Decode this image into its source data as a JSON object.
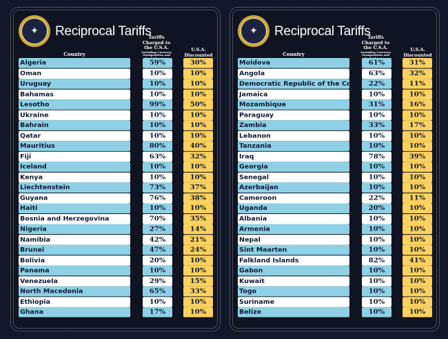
{
  "title": "Reciprocal Tariffs",
  "headers": {
    "country": "Country",
    "charged": "Tariffs Charged to the U.S.A.",
    "charged_sub": "Including Currency Manipulation and Trade Barriers",
    "discounted": "U.S.A. Discounted Reciprocal Tariffs"
  },
  "colors": {
    "background": "#12172a",
    "row_blue": "#8fd0e4",
    "row_white": "#ffffff",
    "discounted": "#fcd15f",
    "text": "#0c1a33"
  },
  "seal_icon": "presidential-seal",
  "tables": [
    {
      "rows": [
        {
          "country": "Algeria",
          "charged": "59%",
          "discounted": "30%"
        },
        {
          "country": "Oman",
          "charged": "10%",
          "discounted": "10%"
        },
        {
          "country": "Uruguay",
          "charged": "10%",
          "discounted": "10%"
        },
        {
          "country": "Bahamas",
          "charged": "10%",
          "discounted": "10%"
        },
        {
          "country": "Lesotho",
          "charged": "99%",
          "discounted": "50%"
        },
        {
          "country": "Ukraine",
          "charged": "10%",
          "discounted": "10%"
        },
        {
          "country": "Bahrain",
          "charged": "10%",
          "discounted": "10%"
        },
        {
          "country": "Qatar",
          "charged": "10%",
          "discounted": "10%"
        },
        {
          "country": "Mauritius",
          "charged": "80%",
          "discounted": "40%"
        },
        {
          "country": "Fiji",
          "charged": "63%",
          "discounted": "32%"
        },
        {
          "country": "Iceland",
          "charged": "10%",
          "discounted": "10%"
        },
        {
          "country": "Kenya",
          "charged": "10%",
          "discounted": "10%"
        },
        {
          "country": "Liechtenstein",
          "charged": "73%",
          "discounted": "37%"
        },
        {
          "country": "Guyana",
          "charged": "76%",
          "discounted": "38%"
        },
        {
          "country": "Haiti",
          "charged": "10%",
          "discounted": "10%"
        },
        {
          "country": "Bosnia and Herzegovina",
          "charged": "70%",
          "discounted": "35%"
        },
        {
          "country": "Nigeria",
          "charged": "27%",
          "discounted": "14%"
        },
        {
          "country": "Namibia",
          "charged": "42%",
          "discounted": "21%"
        },
        {
          "country": "Brunei",
          "charged": "47%",
          "discounted": "24%"
        },
        {
          "country": "Bolivia",
          "charged": "20%",
          "discounted": "10%"
        },
        {
          "country": "Panama",
          "charged": "10%",
          "discounted": "10%"
        },
        {
          "country": "Venezuela",
          "charged": "29%",
          "discounted": "15%"
        },
        {
          "country": "North Macedonia",
          "charged": "65%",
          "discounted": "33%"
        },
        {
          "country": "Ethiopia",
          "charged": "10%",
          "discounted": "10%"
        },
        {
          "country": "Ghana",
          "charged": "17%",
          "discounted": "10%"
        }
      ]
    },
    {
      "rows": [
        {
          "country": "Moldova",
          "charged": "61%",
          "discounted": "31%"
        },
        {
          "country": "Angola",
          "charged": "63%",
          "discounted": "32%"
        },
        {
          "country": "Democratic Republic of the Congo",
          "charged": "22%",
          "discounted": "11%"
        },
        {
          "country": "Jamaica",
          "charged": "10%",
          "discounted": "10%"
        },
        {
          "country": "Mozambique",
          "charged": "31%",
          "discounted": "16%"
        },
        {
          "country": "Paraguay",
          "charged": "10%",
          "discounted": "10%"
        },
        {
          "country": "Zambia",
          "charged": "33%",
          "discounted": "17%"
        },
        {
          "country": "Lebanon",
          "charged": "10%",
          "discounted": "10%"
        },
        {
          "country": "Tanzania",
          "charged": "10%",
          "discounted": "10%"
        },
        {
          "country": "Iraq",
          "charged": "78%",
          "discounted": "39%"
        },
        {
          "country": "Georgia",
          "charged": "10%",
          "discounted": "10%"
        },
        {
          "country": "Senegal",
          "charged": "10%",
          "discounted": "10%"
        },
        {
          "country": "Azerbaijan",
          "charged": "10%",
          "discounted": "10%"
        },
        {
          "country": "Cameroon",
          "charged": "22%",
          "discounted": "11%"
        },
        {
          "country": "Uganda",
          "charged": "20%",
          "discounted": "10%"
        },
        {
          "country": "Albania",
          "charged": "10%",
          "discounted": "10%"
        },
        {
          "country": "Armenia",
          "charged": "10%",
          "discounted": "10%"
        },
        {
          "country": "Nepal",
          "charged": "10%",
          "discounted": "10%"
        },
        {
          "country": "Sint Maarten",
          "charged": "10%",
          "discounted": "10%"
        },
        {
          "country": "Falkland Islands",
          "charged": "82%",
          "discounted": "41%"
        },
        {
          "country": "Gabon",
          "charged": "10%",
          "discounted": "10%"
        },
        {
          "country": "Kuwait",
          "charged": "10%",
          "discounted": "10%"
        },
        {
          "country": "Togo",
          "charged": "10%",
          "discounted": "10%"
        },
        {
          "country": "Suriname",
          "charged": "10%",
          "discounted": "10%"
        },
        {
          "country": "Belize",
          "charged": "10%",
          "discounted": "10%"
        }
      ]
    }
  ]
}
